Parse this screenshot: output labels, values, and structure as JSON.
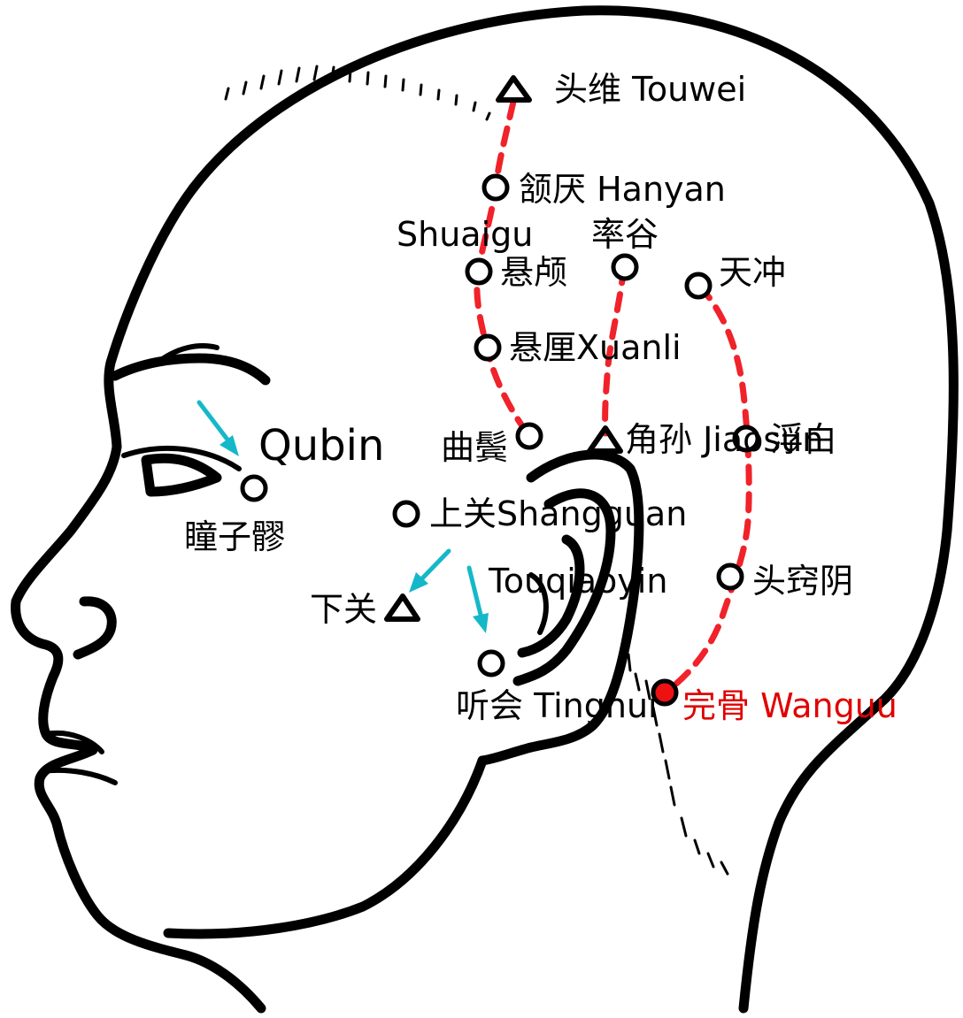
{
  "diagram": {
    "labels": {
      "touwei": "头维 Touwei",
      "hanyan": "颔厌 Hanyan",
      "shuaigu_en": "Shuaigu",
      "shuaigu_zh": "率谷",
      "xuanlu": "悬颅",
      "tianchong": "天冲",
      "xuanli": "悬厘Xuanli",
      "qubin_en": "Qubin",
      "qubin_zh": "曲鬓",
      "jiaosun": "角孙 Jiaosun",
      "fubai": "浮白",
      "tongziliao": "瞳子髎",
      "shangguan": "上关Shangguan",
      "touqiaoyin_en": "Touqiaoyin",
      "touqiaoyin_zh": "头窍阴",
      "xiaguan": "下关",
      "tinghui": "听会 Tinghui",
      "wangu": "完骨 Wanguu"
    },
    "colors": {
      "meridian": "#f0222a",
      "arrow": "#15b8c8",
      "highlight_label": "#e00000",
      "highlight_point": "#ee1111",
      "outline": "#000000"
    },
    "marker_legend": {
      "circle": "acupoint",
      "triangle": "meeting point",
      "filled-red-circle": "highlighted point"
    }
  }
}
